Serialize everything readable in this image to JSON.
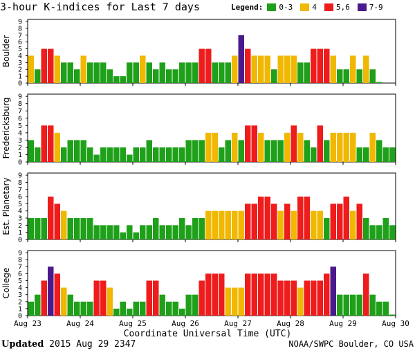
{
  "chart_data": {
    "type": "bar",
    "title": "3-hour K-indices for Last 7 days",
    "legend": {
      "label": "Legend:",
      "entries": [
        {
          "range": "0-3",
          "color": "#1fa01a"
        },
        {
          "range": "4",
          "color": "#f0b800"
        },
        {
          "range": "5,6",
          "color": "#ee1c1c"
        },
        {
          "range": "7-9",
          "color": "#4a1a8c"
        }
      ]
    },
    "xlabel": "Coordinate Universal Time (UTC)",
    "x_ticks": [
      "Aug 23",
      "Aug 24",
      "Aug 25",
      "Aug 26",
      "Aug 27",
      "Aug 28",
      "Aug 29",
      "Aug 30"
    ],
    "ylim": [
      0,
      9
    ],
    "y_ticks": [
      "0",
      "1",
      "2",
      "3",
      "4",
      "5",
      "6",
      "7",
      "8",
      "9"
    ],
    "bars_per_day": 8,
    "series": [
      {
        "name": "Boulder",
        "values": [
          4,
          2,
          5,
          5,
          4,
          3,
          3,
          2,
          4,
          3,
          3,
          3,
          2,
          1,
          1,
          3,
          3,
          4,
          3,
          2,
          3,
          2,
          2,
          3,
          3,
          3,
          5,
          5,
          3,
          3,
          3,
          4,
          7,
          5,
          4,
          4,
          4,
          2,
          4,
          4,
          4,
          3,
          3,
          5,
          5,
          5,
          4,
          2,
          2,
          4,
          2,
          4,
          2,
          0.15
        ]
      },
      {
        "name": "Fredericksburg",
        "values": [
          3,
          2,
          5,
          5,
          4,
          2,
          3,
          3,
          3,
          2,
          1,
          2,
          2,
          2,
          2,
          1,
          2,
          2,
          3,
          2,
          2,
          2,
          2,
          2,
          3,
          3,
          3,
          4,
          4,
          2,
          3,
          4,
          3,
          5,
          5,
          4,
          3,
          3,
          3,
          4,
          5,
          4,
          3,
          2,
          5,
          3,
          4,
          4,
          4,
          4,
          2,
          2,
          4,
          3,
          2,
          2,
          0.15
        ]
      },
      {
        "name": "Est. Planetary",
        "values": [
          3,
          3,
          3,
          6,
          5,
          4,
          3,
          3,
          3,
          3,
          2,
          2,
          2,
          2,
          1,
          2,
          1,
          2,
          2,
          3,
          2,
          2,
          2,
          3,
          2,
          3,
          3,
          4,
          4,
          4,
          4,
          4,
          4,
          5,
          5,
          6,
          6,
          5,
          4,
          5,
          4,
          6,
          6,
          4,
          4,
          3,
          5,
          5,
          6,
          4,
          5,
          3,
          2,
          2,
          3,
          2,
          0.15
        ]
      },
      {
        "name": "College",
        "values": [
          2,
          3,
          5,
          7,
          6,
          4,
          3,
          2,
          2,
          2,
          5,
          5,
          4,
          1,
          2,
          1,
          2,
          2,
          5,
          5,
          3,
          2,
          2,
          1,
          3,
          3,
          5,
          6,
          6,
          6,
          4,
          4,
          4,
          6,
          6,
          6,
          6,
          6,
          5,
          5,
          5,
          4,
          5,
          5,
          5,
          6,
          7,
          3,
          3,
          3,
          3,
          6,
          3,
          2,
          2,
          0.15
        ]
      }
    ]
  },
  "footer": {
    "updated_label": "Updated",
    "updated_value": "2015 Aug 29 2347",
    "credit": "NOAA/SWPC Boulder, CO USA"
  }
}
